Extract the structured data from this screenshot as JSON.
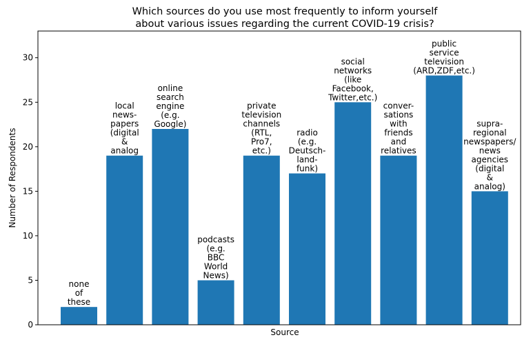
{
  "chart_data": {
    "type": "bar",
    "title_lines": [
      "Which sources do you use most frequently to inform yourself",
      "about various issues regarding the current COVID-19 crisis?"
    ],
    "xlabel": "Source",
    "ylabel": "Number of Respondents",
    "ylim": [
      0,
      33
    ],
    "yticks": [
      "0",
      "5",
      "10",
      "15",
      "20",
      "25",
      "30"
    ],
    "grid": false,
    "bar_color": "#1f77b4",
    "categories": [
      [
        "none",
        "of",
        "these"
      ],
      [
        "local",
        "news-",
        "papers",
        "(digital",
        "&",
        "analog"
      ],
      [
        "online",
        "search",
        "engine",
        "(e.g.",
        "Google)"
      ],
      [
        "podcasts",
        "(e.g.",
        "BBC",
        "World",
        "News)"
      ],
      [
        "private",
        "television",
        "channels",
        "(RTL,",
        "Pro7,",
        "etc.)"
      ],
      [
        "radio",
        "(e.g.",
        "Deutsch-",
        "land-",
        "funk)"
      ],
      [
        "social",
        "networks",
        "(like",
        "Facebook,",
        "Twitter,etc.)"
      ],
      [
        "conver-",
        "sations",
        "with",
        "friends",
        "and",
        "relatives"
      ],
      [
        "public",
        "service",
        "television",
        "(ARD,ZDF,etc.)"
      ],
      [
        "supra-",
        "regional",
        "newspapers/",
        "news",
        "agencies",
        "(digital",
        "&",
        "analog)"
      ]
    ],
    "values": [
      2,
      19,
      22,
      5,
      19,
      17,
      25,
      19,
      28,
      15
    ]
  }
}
